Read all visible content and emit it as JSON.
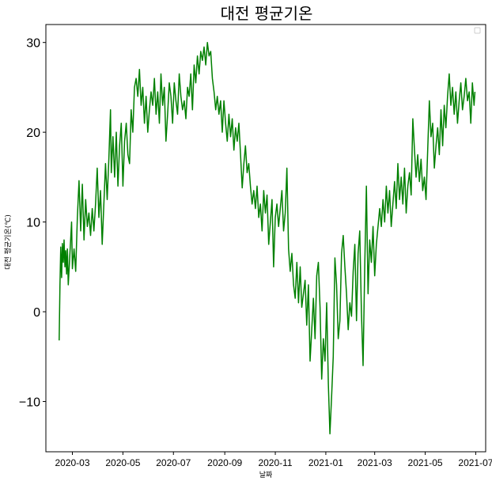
{
  "chart_data": {
    "type": "line",
    "title": "대전 평균기온",
    "xlabel": "날짜",
    "ylabel": "대전 평균기온(℃)",
    "x_range": [
      "2020-01-29",
      "2021-07-13"
    ],
    "ylim": [
      -15.6,
      32
    ],
    "y_ticks": [
      30,
      20,
      10,
      0,
      -10
    ],
    "y_tick_labels": [
      "30",
      "20",
      "10",
      "0",
      "−10"
    ],
    "x_ticks": [
      "2020-03-01",
      "2020-05-01",
      "2020-07-01",
      "2020-09-01",
      "2020-11-01",
      "2021-01-01",
      "2021-03-01",
      "2021-05-01",
      "2021-07-01"
    ],
    "x_tick_labels": [
      "2020-03",
      "2020-05",
      "2020-07",
      "2020-09",
      "2020-11",
      "2021-01",
      "2021-03",
      "2021-05",
      "2021-07"
    ],
    "grid": false,
    "legend": "top-right (empty)",
    "series": [
      {
        "color": "#008000",
        "points": [
          [
            "2020-02-14",
            -3.2
          ],
          [
            "2020-02-15",
            3.0
          ],
          [
            "2020-02-16",
            7.2
          ],
          [
            "2020-02-17",
            3.8
          ],
          [
            "2020-02-18",
            7.6
          ],
          [
            "2020-02-19",
            5.5
          ],
          [
            "2020-02-20",
            8.0
          ],
          [
            "2020-02-21",
            5.0
          ],
          [
            "2020-02-22",
            6.8
          ],
          [
            "2020-02-23",
            4.2
          ],
          [
            "2020-02-24",
            7.0
          ],
          [
            "2020-02-25",
            3.0
          ],
          [
            "2020-02-27",
            6.5
          ],
          [
            "2020-02-29",
            10.0
          ],
          [
            "2020-03-01",
            4.8
          ],
          [
            "2020-03-03",
            7.0
          ],
          [
            "2020-03-05",
            4.5
          ],
          [
            "2020-03-07",
            10.5
          ],
          [
            "2020-03-09",
            14.6
          ],
          [
            "2020-03-11",
            9.0
          ],
          [
            "2020-03-13",
            14.2
          ],
          [
            "2020-03-15",
            8.0
          ],
          [
            "2020-03-17",
            12.5
          ],
          [
            "2020-03-19",
            9.5
          ],
          [
            "2020-03-21",
            11.0
          ],
          [
            "2020-03-23",
            8.5
          ],
          [
            "2020-03-25",
            11.5
          ],
          [
            "2020-03-27",
            9.0
          ],
          [
            "2020-03-29",
            12.0
          ],
          [
            "2020-03-31",
            16.0
          ],
          [
            "2020-04-02",
            10.5
          ],
          [
            "2020-04-04",
            13.5
          ],
          [
            "2020-04-06",
            7.5
          ],
          [
            "2020-04-08",
            12.0
          ],
          [
            "2020-04-10",
            16.5
          ],
          [
            "2020-04-12",
            12.5
          ],
          [
            "2020-04-14",
            17.0
          ],
          [
            "2020-04-16",
            22.5
          ],
          [
            "2020-04-17",
            15.5
          ],
          [
            "2020-04-19",
            19.5
          ],
          [
            "2020-04-21",
            15.0
          ],
          [
            "2020-04-23",
            20.0
          ],
          [
            "2020-04-25",
            14.0
          ],
          [
            "2020-04-27",
            18.5
          ],
          [
            "2020-04-29",
            21.0
          ],
          [
            "2020-05-01",
            14.0
          ],
          [
            "2020-05-03",
            19.0
          ],
          [
            "2020-05-05",
            21.0
          ],
          [
            "2020-05-07",
            17.5
          ],
          [
            "2020-05-09",
            16.5
          ],
          [
            "2020-05-11",
            22.5
          ],
          [
            "2020-05-13",
            20.0
          ],
          [
            "2020-05-15",
            25.0
          ],
          [
            "2020-05-17",
            26.0
          ],
          [
            "2020-05-19",
            24.0
          ],
          [
            "2020-05-21",
            27.0
          ],
          [
            "2020-05-23",
            23.0
          ],
          [
            "2020-05-25",
            25.0
          ],
          [
            "2020-05-27",
            21.0
          ],
          [
            "2020-05-29",
            24.0
          ],
          [
            "2020-05-31",
            20.0
          ],
          [
            "2020-06-02",
            22.5
          ],
          [
            "2020-06-04",
            24.5
          ],
          [
            "2020-06-06",
            23.0
          ],
          [
            "2020-06-08",
            26.0
          ],
          [
            "2020-06-10",
            22.0
          ],
          [
            "2020-06-12",
            24.5
          ],
          [
            "2020-06-14",
            21.0
          ],
          [
            "2020-06-16",
            26.5
          ],
          [
            "2020-06-18",
            23.0
          ],
          [
            "2020-06-20",
            25.0
          ],
          [
            "2020-06-22",
            19.0
          ],
          [
            "2020-06-24",
            22.0
          ],
          [
            "2020-06-26",
            25.5
          ],
          [
            "2020-06-28",
            24.0
          ],
          [
            "2020-06-30",
            21.0
          ],
          [
            "2020-07-02",
            25.5
          ],
          [
            "2020-07-04",
            23.5
          ],
          [
            "2020-07-06",
            22.0
          ],
          [
            "2020-07-08",
            26.5
          ],
          [
            "2020-07-10",
            24.0
          ],
          [
            "2020-07-12",
            22.5
          ],
          [
            "2020-07-14",
            23.5
          ],
          [
            "2020-07-16",
            21.5
          ],
          [
            "2020-07-18",
            25.0
          ],
          [
            "2020-07-20",
            24.0
          ],
          [
            "2020-07-22",
            26.5
          ],
          [
            "2020-07-24",
            22.5
          ],
          [
            "2020-07-26",
            27.5
          ],
          [
            "2020-07-28",
            25.5
          ],
          [
            "2020-07-30",
            28.5
          ],
          [
            "2020-08-01",
            26.5
          ],
          [
            "2020-08-03",
            29.0
          ],
          [
            "2020-08-05",
            28.0
          ],
          [
            "2020-08-07",
            29.5
          ],
          [
            "2020-08-09",
            27.5
          ],
          [
            "2020-08-11",
            30.0
          ],
          [
            "2020-08-13",
            28.5
          ],
          [
            "2020-08-15",
            29.0
          ],
          [
            "2020-08-17",
            26.0
          ],
          [
            "2020-08-19",
            24.5
          ],
          [
            "2020-08-21",
            22.5
          ],
          [
            "2020-08-23",
            24.0
          ],
          [
            "2020-08-25",
            22.0
          ],
          [
            "2020-08-27",
            23.5
          ],
          [
            "2020-08-29",
            20.0
          ],
          [
            "2020-08-31",
            23.5
          ],
          [
            "2020-09-02",
            21.0
          ],
          [
            "2020-09-04",
            19.0
          ],
          [
            "2020-09-06",
            22.0
          ],
          [
            "2020-09-08",
            19.5
          ],
          [
            "2020-09-10",
            21.5
          ],
          [
            "2020-09-12",
            18.0
          ],
          [
            "2020-09-14",
            20.5
          ],
          [
            "2020-09-16",
            19.0
          ],
          [
            "2020-09-18",
            21.0
          ],
          [
            "2020-09-20",
            17.5
          ],
          [
            "2020-09-22",
            13.8
          ],
          [
            "2020-09-24",
            16.5
          ],
          [
            "2020-09-26",
            18.5
          ],
          [
            "2020-09-28",
            15.5
          ],
          [
            "2020-09-30",
            16.5
          ],
          [
            "2020-10-02",
            14.0
          ],
          [
            "2020-10-04",
            12.0
          ],
          [
            "2020-10-06",
            13.5
          ],
          [
            "2020-10-08",
            11.5
          ],
          [
            "2020-10-10",
            14.0
          ],
          [
            "2020-10-12",
            10.5
          ],
          [
            "2020-10-14",
            12.0
          ],
          [
            "2020-10-16",
            9.0
          ],
          [
            "2020-10-18",
            13.5
          ],
          [
            "2020-10-20",
            11.0
          ],
          [
            "2020-10-22",
            13.0
          ],
          [
            "2020-10-24",
            7.5
          ],
          [
            "2020-10-26",
            10.0
          ],
          [
            "2020-10-28",
            12.5
          ],
          [
            "2020-10-30",
            5.0
          ],
          [
            "2020-11-01",
            10.5
          ],
          [
            "2020-11-03",
            12.0
          ],
          [
            "2020-11-05",
            9.5
          ],
          [
            "2020-11-07",
            11.5
          ],
          [
            "2020-11-09",
            13.5
          ],
          [
            "2020-11-11",
            9.0
          ],
          [
            "2020-11-13",
            11.0
          ],
          [
            "2020-11-15",
            16.0
          ],
          [
            "2020-11-17",
            7.0
          ],
          [
            "2020-11-19",
            4.5
          ],
          [
            "2020-11-21",
            6.5
          ],
          [
            "2020-11-23",
            3.0
          ],
          [
            "2020-11-25",
            1.5
          ],
          [
            "2020-11-27",
            5.5
          ],
          [
            "2020-11-29",
            1.0
          ],
          [
            "2020-12-01",
            5.0
          ],
          [
            "2020-12-03",
            0.5
          ],
          [
            "2020-12-05",
            2.0
          ],
          [
            "2020-12-07",
            3.5
          ],
          [
            "2020-12-09",
            -1.5
          ],
          [
            "2020-12-11",
            3.0
          ],
          [
            "2020-12-13",
            -5.5
          ],
          [
            "2020-12-15",
            -2.0
          ],
          [
            "2020-12-17",
            1.5
          ],
          [
            "2020-12-19",
            -3.0
          ],
          [
            "2020-12-21",
            4.0
          ],
          [
            "2020-12-23",
            5.5
          ],
          [
            "2020-12-25",
            0.5
          ],
          [
            "2020-12-27",
            -7.5
          ],
          [
            "2020-12-29",
            -3.0
          ],
          [
            "2020-12-31",
            -5.5
          ],
          [
            "2021-01-02",
            1.0
          ],
          [
            "2021-01-04",
            -8.0
          ],
          [
            "2021-01-06",
            -13.6
          ],
          [
            "2021-01-08",
            -9.5
          ],
          [
            "2021-01-10",
            -5.0
          ],
          [
            "2021-01-12",
            6.0
          ],
          [
            "2021-01-14",
            3.0
          ],
          [
            "2021-01-16",
            -3.0
          ],
          [
            "2021-01-18",
            -1.0
          ],
          [
            "2021-01-20",
            6.5
          ],
          [
            "2021-01-22",
            8.5
          ],
          [
            "2021-01-24",
            5.0
          ],
          [
            "2021-01-26",
            2.0
          ],
          [
            "2021-01-28",
            -2.0
          ],
          [
            "2021-01-30",
            1.0
          ],
          [
            "2021-02-01",
            -0.5
          ],
          [
            "2021-02-03",
            4.5
          ],
          [
            "2021-02-05",
            7.5
          ],
          [
            "2021-02-07",
            -1.0
          ],
          [
            "2021-02-09",
            6.5
          ],
          [
            "2021-02-11",
            9.0
          ],
          [
            "2021-02-13",
            0.0
          ],
          [
            "2021-02-15",
            -6.0
          ],
          [
            "2021-02-17",
            5.0
          ],
          [
            "2021-02-19",
            14.0
          ],
          [
            "2021-02-21",
            2.0
          ],
          [
            "2021-02-23",
            8.0
          ],
          [
            "2021-02-25",
            5.5
          ],
          [
            "2021-02-27",
            9.5
          ],
          [
            "2021-03-01",
            4.0
          ],
          [
            "2021-03-03",
            7.5
          ],
          [
            "2021-03-05",
            9.5
          ],
          [
            "2021-03-07",
            11.5
          ],
          [
            "2021-03-09",
            9.5
          ],
          [
            "2021-03-11",
            12.5
          ],
          [
            "2021-03-13",
            10.0
          ],
          [
            "2021-03-15",
            14.0
          ],
          [
            "2021-03-17",
            11.0
          ],
          [
            "2021-03-19",
            13.5
          ],
          [
            "2021-03-21",
            9.5
          ],
          [
            "2021-03-23",
            12.0
          ],
          [
            "2021-03-25",
            14.5
          ],
          [
            "2021-03-27",
            11.5
          ],
          [
            "2021-03-29",
            16.5
          ],
          [
            "2021-03-31",
            12.5
          ],
          [
            "2021-04-02",
            15.0
          ],
          [
            "2021-04-04",
            12.0
          ],
          [
            "2021-04-06",
            16.0
          ],
          [
            "2021-04-08",
            11.0
          ],
          [
            "2021-04-10",
            14.0
          ],
          [
            "2021-04-12",
            15.5
          ],
          [
            "2021-04-14",
            13.0
          ],
          [
            "2021-04-16",
            21.5
          ],
          [
            "2021-04-18",
            18.0
          ],
          [
            "2021-04-20",
            15.0
          ],
          [
            "2021-04-22",
            17.5
          ],
          [
            "2021-04-24",
            14.5
          ],
          [
            "2021-04-26",
            17.0
          ],
          [
            "2021-04-28",
            13.5
          ],
          [
            "2021-04-30",
            15.0
          ],
          [
            "2021-05-02",
            12.5
          ],
          [
            "2021-05-04",
            18.0
          ],
          [
            "2021-05-06",
            23.5
          ],
          [
            "2021-05-08",
            19.5
          ],
          [
            "2021-05-10",
            21.0
          ],
          [
            "2021-05-12",
            16.0
          ],
          [
            "2021-05-14",
            18.5
          ],
          [
            "2021-05-16",
            20.5
          ],
          [
            "2021-05-18",
            17.5
          ],
          [
            "2021-05-20",
            22.5
          ],
          [
            "2021-05-22",
            18.5
          ],
          [
            "2021-05-24",
            23.0
          ],
          [
            "2021-05-26",
            20.5
          ],
          [
            "2021-05-28",
            24.0
          ],
          [
            "2021-05-30",
            26.5
          ],
          [
            "2021-06-01",
            23.0
          ],
          [
            "2021-06-03",
            25.0
          ],
          [
            "2021-06-05",
            22.0
          ],
          [
            "2021-06-07",
            24.5
          ],
          [
            "2021-06-09",
            21.0
          ],
          [
            "2021-06-11",
            23.5
          ],
          [
            "2021-06-13",
            25.5
          ],
          [
            "2021-06-15",
            22.5
          ],
          [
            "2021-06-17",
            24.0
          ],
          [
            "2021-06-19",
            26.0
          ],
          [
            "2021-06-21",
            23.5
          ],
          [
            "2021-06-23",
            24.5
          ],
          [
            "2021-06-25",
            21.0
          ],
          [
            "2021-06-27",
            25.5
          ],
          [
            "2021-06-29",
            23.0
          ],
          [
            "2021-06-30",
            24.5
          ]
        ]
      }
    ]
  }
}
